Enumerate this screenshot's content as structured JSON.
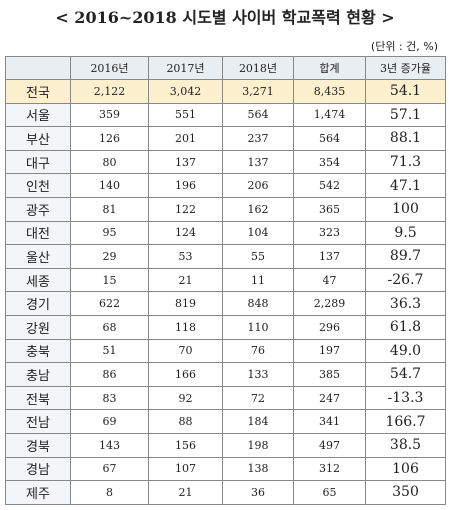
{
  "header": {
    "title": "< 2016~2018 시도별 사이버 학교폭력 현황 >",
    "unit": "(단위 : 건, %)"
  },
  "table": {
    "columns": [
      "",
      "2016년",
      "2017년",
      "2018년",
      "합계",
      "3년 증가율"
    ],
    "rows": [
      [
        "전국",
        "2,122",
        "3,042",
        "3,271",
        "8,435",
        "54.1"
      ],
      [
        "서울",
        "359",
        "551",
        "564",
        "1,474",
        "57.1"
      ],
      [
        "부산",
        "126",
        "201",
        "237",
        "564",
        "88.1"
      ],
      [
        "대구",
        "80",
        "137",
        "137",
        "354",
        "71.3"
      ],
      [
        "인천",
        "140",
        "196",
        "206",
        "542",
        "47.1"
      ],
      [
        "광주",
        "81",
        "122",
        "162",
        "365",
        "100"
      ],
      [
        "대전",
        "95",
        "124",
        "104",
        "323",
        "9.5"
      ],
      [
        "울산",
        "29",
        "53",
        "55",
        "137",
        "89.7"
      ],
      [
        "세종",
        "15",
        "21",
        "11",
        "47",
        "-26.7"
      ],
      [
        "경기",
        "622",
        "819",
        "848",
        "2,289",
        "36.3"
      ],
      [
        "강원",
        "68",
        "118",
        "110",
        "296",
        "61.8"
      ],
      [
        "충북",
        "51",
        "70",
        "76",
        "197",
        "49.0"
      ],
      [
        "충남",
        "86",
        "166",
        "133",
        "385",
        "54.7"
      ],
      [
        "전북",
        "83",
        "92",
        "72",
        "247",
        "-13.3"
      ],
      [
        "전남",
        "69",
        "88",
        "184",
        "341",
        "166.7"
      ],
      [
        "경북",
        "143",
        "156",
        "198",
        "497",
        "38.5"
      ],
      [
        "경남",
        "67",
        "107",
        "138",
        "312",
        "106"
      ],
      [
        "제주",
        "8",
        "21",
        "36",
        "65",
        "350"
      ]
    ]
  }
}
